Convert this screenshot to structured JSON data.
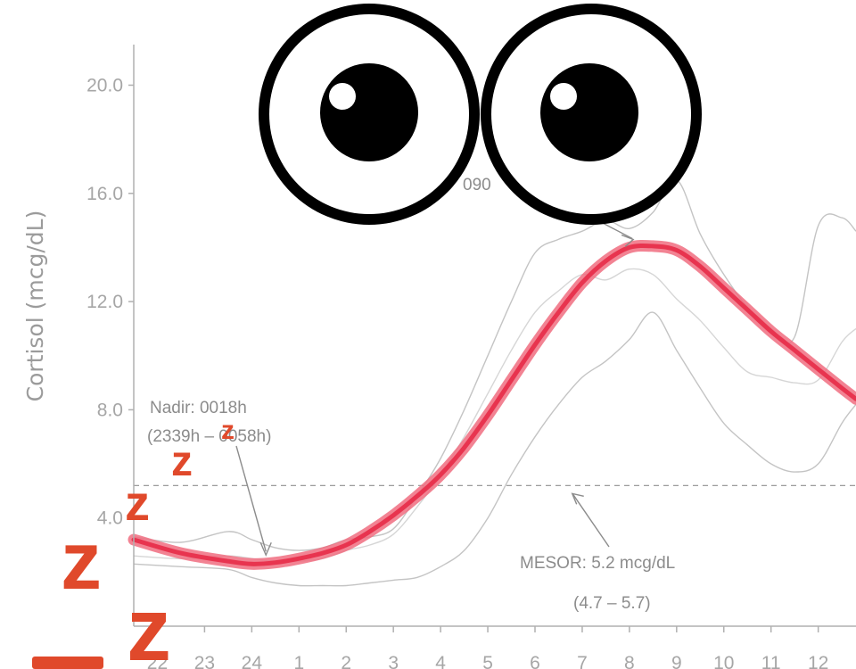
{
  "chart_data": {
    "type": "line",
    "title": "",
    "xlabel": "",
    "ylabel": "Cortisol (mcg/dL)",
    "ylim": [
      0,
      21.5
    ],
    "xlim": [
      21.5,
      36.8
    ],
    "grid": false,
    "y_ticks": [
      "4.0",
      "8.0",
      "12.0",
      "16.0",
      "20.0"
    ],
    "y_tick_values": [
      4,
      8,
      12,
      16,
      20
    ],
    "x_ticks": [
      "22",
      "23",
      "24",
      "1",
      "2",
      "3",
      "4",
      "5",
      "6",
      "7",
      "8",
      "9",
      "10",
      "11",
      "12"
    ],
    "x_tick_values": [
      22,
      23,
      24,
      25,
      26,
      27,
      28,
      29,
      30,
      31,
      32,
      33,
      34,
      35,
      36
    ],
    "series": [
      {
        "role": "fit",
        "color": "#e8344f",
        "x": [
          21.5,
          22.5,
          23.5,
          24,
          24.5,
          25,
          25.5,
          26,
          26.5,
          27,
          27.5,
          28,
          28.5,
          29,
          29.5,
          30,
          30.5,
          31,
          31.5,
          32,
          32.5,
          33,
          33.5,
          34,
          34.5,
          35,
          35.5,
          36,
          36.5,
          36.8
        ],
        "y": [
          3.2,
          2.7,
          2.4,
          2.3,
          2.35,
          2.5,
          2.7,
          3.0,
          3.5,
          4.1,
          4.8,
          5.6,
          6.6,
          7.8,
          9.1,
          10.4,
          11.6,
          12.7,
          13.5,
          14.0,
          14.05,
          13.9,
          13.3,
          12.5,
          11.7,
          10.9,
          10.2,
          9.5,
          8.8,
          8.4
        ]
      },
      {
        "role": "upper-band",
        "color": "#c4c4c4",
        "x": [
          21.5,
          22.5,
          23.5,
          24,
          24.5,
          25,
          25.5,
          26,
          26.5,
          27,
          27.5,
          28,
          28.5,
          29,
          29.5,
          30,
          30.5,
          31,
          31.5,
          32,
          32.5,
          33,
          33.5,
          34,
          34.5,
          35,
          35.5,
          36,
          36.5,
          36.8
        ],
        "y": [
          3.3,
          3.1,
          3.5,
          3.2,
          2.9,
          2.8,
          2.9,
          3.2,
          3.3,
          3.6,
          4.8,
          6.2,
          8.0,
          10.0,
          12.0,
          13.8,
          14.3,
          14.6,
          15.0,
          14.7,
          15.3,
          16.5,
          14.5,
          13.0,
          11.8,
          11.0,
          10.7,
          14.8,
          15.1,
          14.6
        ]
      },
      {
        "role": "lower-band",
        "color": "#c4c4c4",
        "x": [
          21.5,
          22.5,
          23.5,
          24,
          24.5,
          25,
          25.5,
          26,
          26.5,
          27,
          27.5,
          28,
          28.5,
          29,
          29.5,
          30,
          30.5,
          31,
          31.5,
          32,
          32.5,
          33,
          33.5,
          34,
          34.5,
          35,
          35.5,
          36,
          36.5,
          36.8
        ],
        "y": [
          2.3,
          2.2,
          2.1,
          1.8,
          1.6,
          1.5,
          1.5,
          1.5,
          1.6,
          1.7,
          1.8,
          2.2,
          2.8,
          4.0,
          5.6,
          7.0,
          8.2,
          9.2,
          9.8,
          10.6,
          11.6,
          10.2,
          8.8,
          7.5,
          6.7,
          6.0,
          5.7,
          6.0,
          7.5,
          8.2
        ]
      },
      {
        "role": "mid-band",
        "color": "#d6d6d6",
        "x": [
          21.5,
          22.5,
          23.5,
          24,
          24.5,
          25,
          25.5,
          26,
          26.5,
          27,
          27.5,
          28,
          28.5,
          29,
          29.5,
          30,
          30.5,
          31,
          31.5,
          32,
          32.5,
          33,
          33.5,
          34,
          34.5,
          35,
          35.5,
          36,
          36.5,
          36.8
        ],
        "y": [
          2.6,
          2.5,
          2.6,
          2.5,
          2.4,
          2.4,
          2.5,
          2.8,
          3.0,
          3.4,
          4.4,
          5.6,
          7.0,
          8.6,
          10.2,
          11.6,
          12.4,
          13.0,
          12.8,
          13.2,
          13.0,
          12.1,
          11.3,
          10.3,
          9.4,
          9.2,
          9.0,
          9.1,
          10.5,
          11.0
        ]
      }
    ],
    "mesor": 5.2,
    "annotations": {
      "nadir_line1": "Nadir: 0018h",
      "nadir_line2": "(2339h – 0058h)",
      "nadir_point": {
        "x": 24.3,
        "y": 2.3
      },
      "acrophase_fragment": "090",
      "acrophase_point": {
        "x": 32.1,
        "y": 14.0
      },
      "mesor_line1": "MESOR: 5.2 mcg/dL",
      "mesor_line2": "(4.7 – 5.7)",
      "mesor_point": {
        "x": 30.75,
        "y": 5.2
      }
    }
  },
  "stickers": {
    "eyes": "googly-eyes",
    "snore_letters": [
      "z",
      "z",
      "z",
      "z",
      "z"
    ]
  }
}
